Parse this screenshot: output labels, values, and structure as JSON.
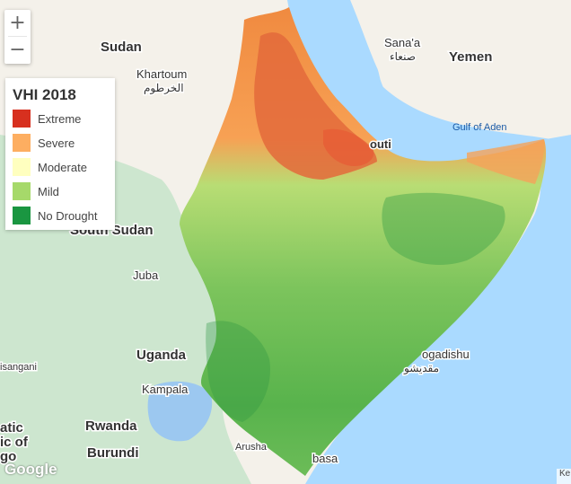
{
  "legend": {
    "title": "VHI 2018",
    "items": [
      {
        "label": "Extreme",
        "color": "#d7301f"
      },
      {
        "label": "Severe",
        "color": "#fdae61"
      },
      {
        "label": "Moderate",
        "color": "#ffffbf"
      },
      {
        "label": "Mild",
        "color": "#a6d96a"
      },
      {
        "label": "No Drought",
        "color": "#1a9641"
      }
    ]
  },
  "zoom": {
    "in": "+",
    "out": "−"
  },
  "map_labels": {
    "sudan": "Sudan",
    "khartoum": "Khartoum",
    "khartoum_ar": "الخرطوم",
    "sanaa": "Sana'a",
    "sanaa_ar": "صنعاء",
    "yemen": "Yemen",
    "gulf_of_aden": "Gulf of Aden",
    "djibouti": "outi",
    "south_sudan": "South Sudan",
    "juba": "Juba",
    "uganda": "Uganda",
    "kampala": "Kampala",
    "kisangani": "isangani",
    "mogadishu": "ogadishu",
    "mogadishu_ar": "مقديشو",
    "rwanda": "Rwanda",
    "burundi": "Burundi",
    "arusha": "Arusha",
    "mombasa": "basa",
    "drc": "atic\nic of\ngo"
  },
  "google_logo": "Google",
  "attribution": "Ke"
}
